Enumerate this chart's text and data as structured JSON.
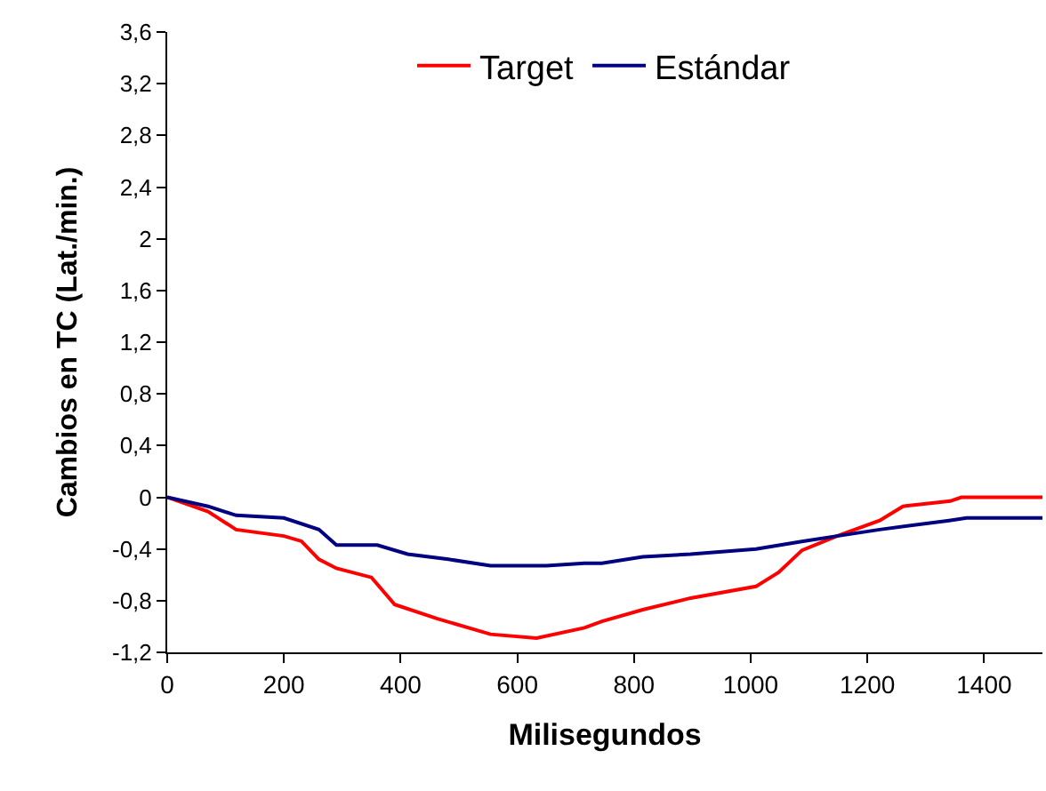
{
  "chart_data": {
    "type": "line",
    "xlabel": "Milisegundos",
    "ylabel": "Cambios en TC (Lat./min.)",
    "xlim": [
      0,
      1500
    ],
    "xticks": [
      0,
      200,
      400,
      600,
      800,
      1000,
      1200,
      1400
    ],
    "ylim": [
      -1.2,
      3.6
    ],
    "yticks": [
      {
        "value": -1.2,
        "label": "-1,2"
      },
      {
        "value": -0.8,
        "label": "-0,8"
      },
      {
        "value": -0.4,
        "label": "-0,4"
      },
      0,
      {
        "value": 0.4,
        "label": "0,4"
      },
      {
        "value": 0.8,
        "label": "0,8"
      },
      {
        "value": 1.2,
        "label": "1,2"
      },
      {
        "value": 1.6,
        "label": "1,6"
      },
      2,
      {
        "value": 2.4,
        "label": "2,4"
      },
      {
        "value": 2.8,
        "label": "2,8"
      },
      {
        "value": 3.2,
        "label": "3,2"
      },
      {
        "value": 3.6,
        "label": "3,6"
      }
    ],
    "legend": "top",
    "marker": "none",
    "line_style": "solid",
    "series": [
      {
        "name": "Target",
        "color": "#ff0000",
        "x": [
          0,
          70,
          118,
          200,
          230,
          260,
          290,
          350,
          390,
          463,
          554,
          633,
          715,
          745,
          815,
          897,
          1009,
          1048,
          1088,
          1148,
          1221,
          1261,
          1342,
          1361,
          1500
        ],
        "values": [
          0,
          -0.11,
          -0.25,
          -0.3,
          -0.34,
          -0.48,
          -0.55,
          -0.62,
          -0.83,
          -0.94,
          -1.06,
          -1.09,
          -1.01,
          -0.96,
          -0.87,
          -0.78,
          -0.69,
          -0.58,
          -0.41,
          -0.3,
          -0.18,
          -0.07,
          -0.03,
          0,
          0
        ]
      },
      {
        "name": "Estándar",
        "color": "#000080",
        "x": [
          0,
          70,
          118,
          200,
          260,
          290,
          360,
          412,
          482,
          554,
          650,
          715,
          745,
          815,
          897,
          1009,
          1090,
          1148,
          1221,
          1340,
          1370,
          1500
        ],
        "values": [
          0,
          -0.07,
          -0.14,
          -0.16,
          -0.25,
          -0.37,
          -0.37,
          -0.44,
          -0.48,
          -0.53,
          -0.53,
          -0.51,
          -0.51,
          -0.46,
          -0.44,
          -0.4,
          -0.34,
          -0.3,
          -0.25,
          -0.18,
          -0.16,
          -0.16
        ]
      }
    ]
  }
}
